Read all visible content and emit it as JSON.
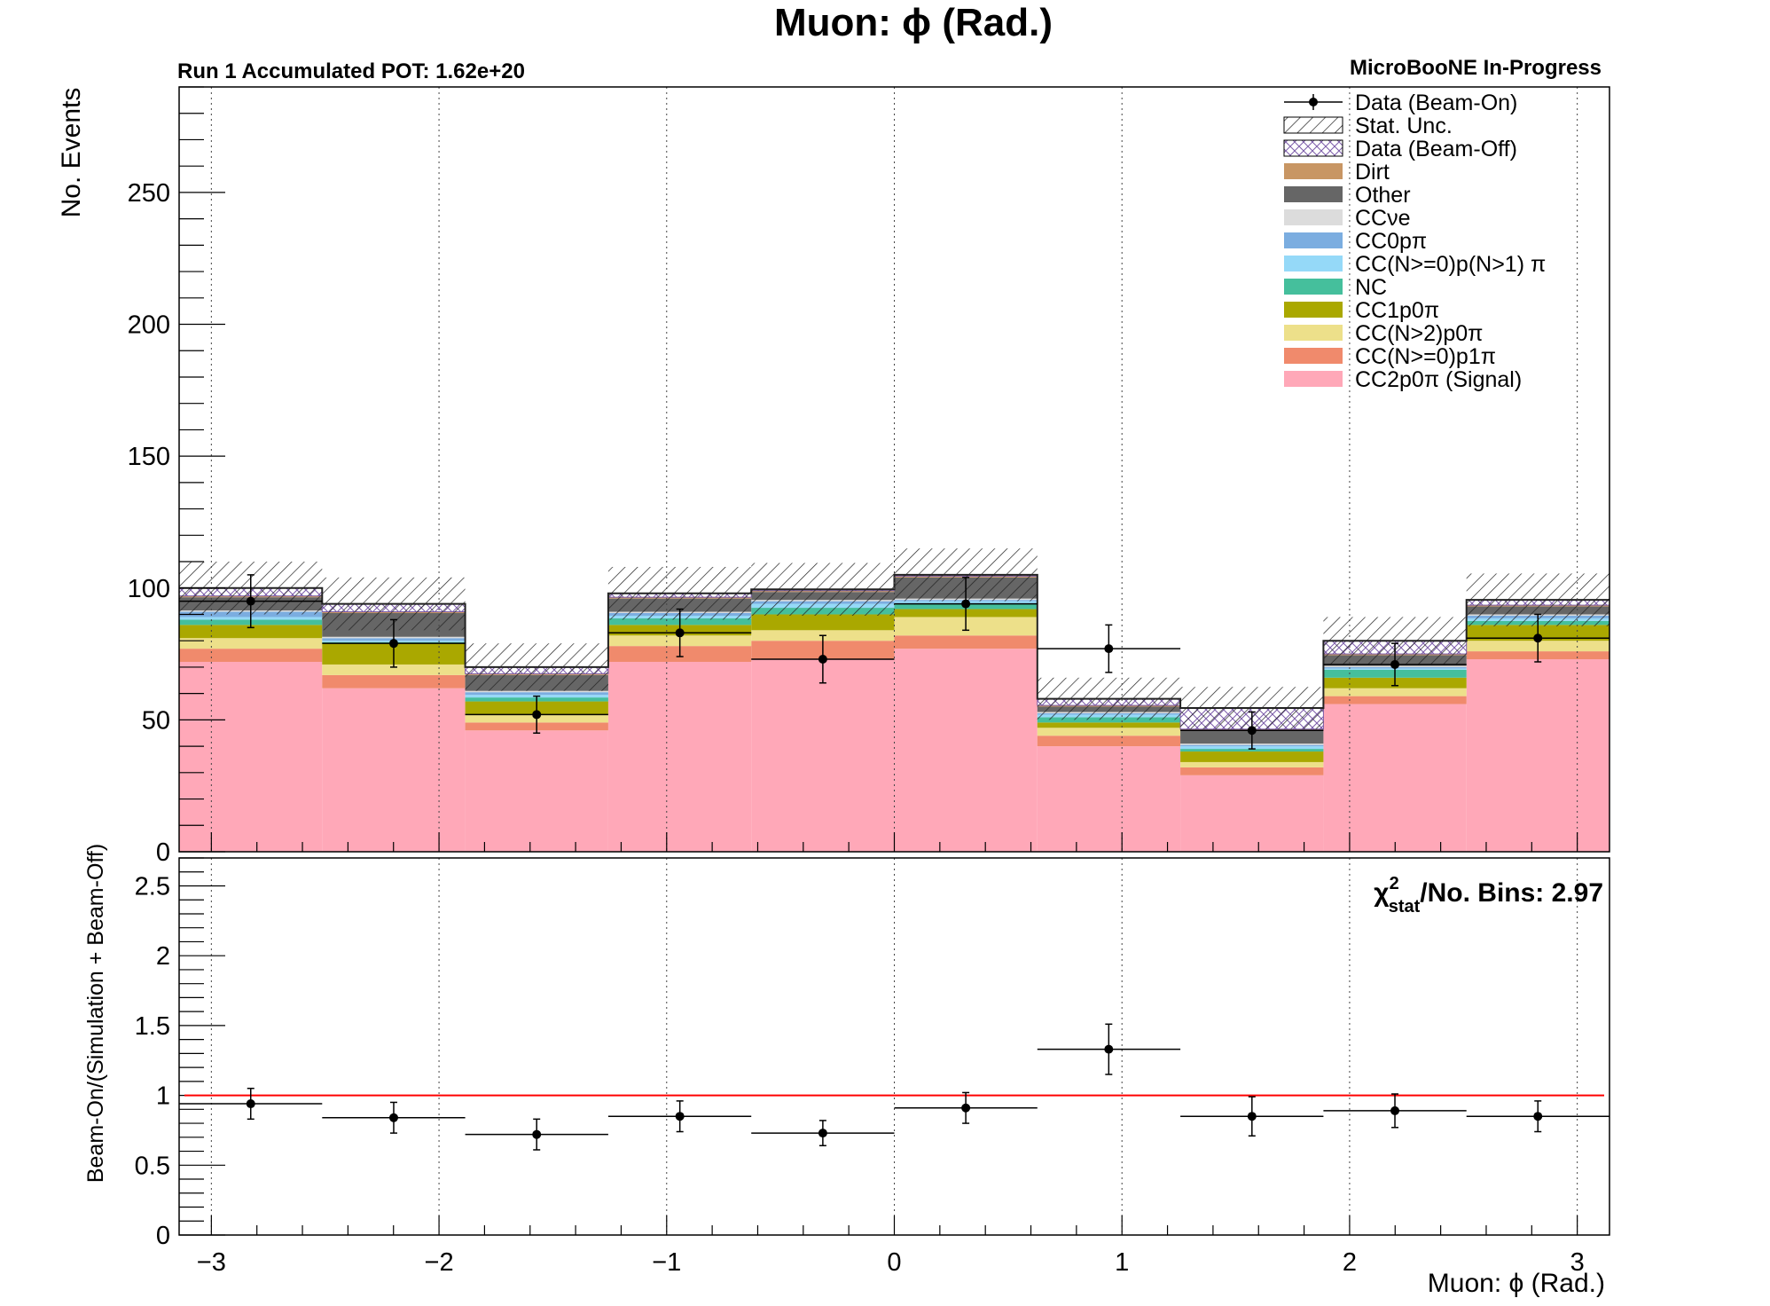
{
  "chart_data": [
    {
      "type": "bar",
      "stacked": true,
      "title": "Muon: ϕ (Rad.)",
      "subtitle_left": "Run 1 Accumulated POT: 1.62e+20",
      "subtitle_right": "MicroBooNE In-Progress",
      "ylabel": "No. Events",
      "xlim": [
        -3.1416,
        3.1416
      ],
      "ylim": [
        0,
        290
      ],
      "x_ticks": [
        -3,
        -2,
        -1,
        0,
        1,
        2,
        3
      ],
      "y_ticks": [
        0,
        50,
        100,
        150,
        200,
        250
      ],
      "grid": "vertical dotted",
      "legend_position": "top-right",
      "bin_edges": [
        -3.1416,
        -2.5133,
        -1.885,
        -1.2566,
        -0.6283,
        0,
        0.6283,
        1.2566,
        1.885,
        2.5133,
        3.1416
      ],
      "series": [
        {
          "name": "CC2p0π (Signal)",
          "color": "#ffa8b8",
          "values": [
            72,
            62,
            46,
            72,
            73,
            77,
            40,
            29,
            56,
            73
          ]
        },
        {
          "name": "CC(N>=0)p1π",
          "color": "#f08a6c",
          "values": [
            5,
            5,
            3,
            6,
            7,
            5,
            4,
            3,
            3,
            3
          ]
        },
        {
          "name": "CC(N>2)p0π",
          "color": "#ede08a",
          "values": [
            4,
            4,
            3,
            4,
            4,
            7,
            3,
            2,
            3,
            4
          ]
        },
        {
          "name": "CC1p0π",
          "color": "#aaa800",
          "values": [
            5,
            8,
            5,
            4,
            6,
            3,
            2,
            4,
            4,
            6
          ]
        },
        {
          "name": "NC",
          "color": "#45bf9c",
          "values": [
            2,
            0.5,
            1.5,
            2.5,
            2.5,
            2,
            2,
            1,
            3,
            1.5
          ]
        },
        {
          "name": "CC(N>=0)p(N>1) π",
          "color": "#95d9f8",
          "values": [
            1,
            0.5,
            1,
            1,
            1.5,
            1,
            1,
            1,
            0.5,
            1
          ]
        },
        {
          "name": "CC0pπ",
          "color": "#7bade0",
          "values": [
            2,
            1,
            1,
            1,
            1,
            0.5,
            0.5,
            0.5,
            0.5,
            1
          ]
        },
        {
          "name": "CCνe",
          "color": "#dcdcdc",
          "values": [
            0.5,
            0.5,
            0.5,
            0.5,
            0.5,
            0.5,
            0.5,
            0.5,
            0.5,
            0.5
          ]
        },
        {
          "name": "Other",
          "color": "#666666",
          "values": [
            5,
            9,
            6,
            5,
            3,
            8,
            2,
            5,
            4,
            3
          ]
        },
        {
          "name": "Dirt",
          "color": "#c89664",
          "values": [
            0.5,
            0.5,
            0.5,
            0.5,
            0.5,
            0.5,
            0.5,
            0.5,
            0.5,
            0.5
          ]
        },
        {
          "name": "Data (Beam-Off)",
          "color": "#7b5ba8",
          "hatch": "cross",
          "values": [
            3,
            3,
            2.5,
            1.5,
            0.5,
            0.5,
            2.5,
            8,
            5,
            2
          ]
        }
      ],
      "stat_unc": {
        "name": "Stat. Unc.",
        "values": [
          10,
          10,
          9,
          10,
          10,
          10,
          8,
          8,
          9,
          10
        ]
      },
      "data_points": {
        "name": "Data (Beam-On)",
        "x": [
          -2.827,
          -2.199,
          -1.571,
          -0.942,
          -0.314,
          0.314,
          0.942,
          1.571,
          2.199,
          2.827
        ],
        "y": [
          95,
          79,
          52,
          83,
          73,
          94,
          77,
          46,
          71,
          81
        ],
        "yerr": [
          10,
          9,
          7,
          9,
          9,
          10,
          9,
          7,
          8,
          9
        ]
      },
      "legend": [
        {
          "label": "Data (Beam-On)",
          "kind": "point"
        },
        {
          "label": "Stat. Unc.",
          "kind": "hatch"
        },
        {
          "label": "Data (Beam-Off)",
          "kind": "crosshatch"
        },
        {
          "label": "Dirt",
          "kind": "fill",
          "color": "#c89664"
        },
        {
          "label": "Other",
          "kind": "fill",
          "color": "#666666"
        },
        {
          "label": "CCνe",
          "kind": "fill",
          "color": "#dcdcdc"
        },
        {
          "label": "CC0pπ",
          "kind": "fill",
          "color": "#7bade0"
        },
        {
          "label": "CC(N>=0)p(N>1) π",
          "kind": "fill",
          "color": "#95d9f8"
        },
        {
          "label": "NC",
          "kind": "fill",
          "color": "#45bf9c"
        },
        {
          "label": "CC1p0π",
          "kind": "fill",
          "color": "#aaa800"
        },
        {
          "label": "CC(N>2)p0π",
          "kind": "fill",
          "color": "#ede08a"
        },
        {
          "label": "CC(N>=0)p1π",
          "kind": "fill",
          "color": "#f08a6c"
        },
        {
          "label": "CC2p0π (Signal)",
          "kind": "fill",
          "color": "#ffa8b8"
        }
      ]
    },
    {
      "type": "scatter",
      "xlabel": "Muon: ϕ (Rad.)",
      "ylabel": "Beam-On/(Simulation + Beam-Off)",
      "xlim": [
        -3.1416,
        3.1416
      ],
      "ylim": [
        0,
        2.7
      ],
      "x_ticks": [
        -3,
        -2,
        -1,
        0,
        1,
        2,
        3
      ],
      "y_ticks": [
        0,
        0.5,
        1,
        1.5,
        2,
        2.5
      ],
      "grid": "vertical dotted",
      "reference_line": {
        "y": 1,
        "color": "#ff0000"
      },
      "annotation": {
        "chi_symbol": "χ",
        "sup": "2",
        "sub": "stat",
        "text": "/No. Bins: 2.97"
      },
      "points": {
        "x": [
          -2.827,
          -2.199,
          -1.571,
          -0.942,
          -0.314,
          0.314,
          0.942,
          1.571,
          2.199,
          2.827
        ],
        "y": [
          0.94,
          0.84,
          0.72,
          0.85,
          0.73,
          0.91,
          1.33,
          0.85,
          0.89,
          0.85
        ],
        "yerr": [
          0.11,
          0.11,
          0.11,
          0.11,
          0.09,
          0.11,
          0.18,
          0.14,
          0.12,
          0.11
        ]
      }
    }
  ]
}
